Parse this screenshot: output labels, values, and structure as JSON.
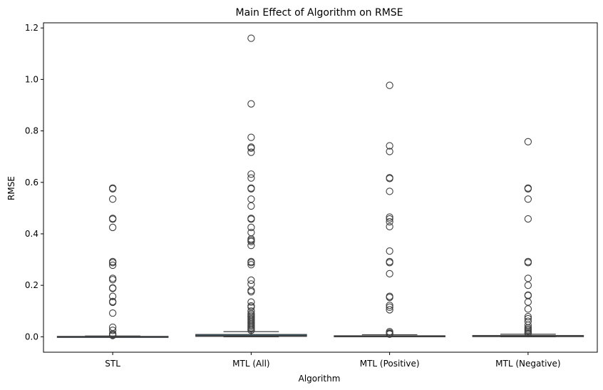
{
  "chart_data": {
    "type": "box",
    "title": "Main Effect of Algorithm on RMSE",
    "xlabel": "Algorithm",
    "ylabel": "RMSE",
    "ylim": [
      -0.06,
      1.22
    ],
    "yticks": [
      0.0,
      0.2,
      0.4,
      0.6,
      0.8,
      1.0,
      1.2
    ],
    "ytick_labels": [
      "0.0",
      "0.2",
      "0.4",
      "0.6",
      "0.8",
      "1.0",
      "1.2"
    ],
    "grid": false,
    "legend": "none",
    "colors": {
      "box_fill": "#3274a1",
      "line": "#3f3f3f",
      "outlier_edge": "#3f3f3f",
      "background": "#ffffff"
    },
    "categories": [
      "STL",
      "MTL (All)",
      "MTL (Positive)",
      "MTL (Negative)"
    ],
    "boxes": [
      {
        "category": "STL",
        "q1": 0.0,
        "median": 0.0005,
        "q3": 0.0015,
        "whisker_low": 0.0,
        "whisker_high": 0.003,
        "outliers": [
          0.578,
          0.575,
          0.535,
          0.46,
          0.457,
          0.425,
          0.292,
          0.288,
          0.278,
          0.227,
          0.222,
          0.19,
          0.188,
          0.157,
          0.137,
          0.134,
          0.092,
          0.037,
          0.025,
          0.012,
          0.008,
          0.005
        ]
      },
      {
        "category": "MTL (All)",
        "q1": 0.0015,
        "median": 0.004,
        "q3": 0.009,
        "whisker_low": 0.0,
        "whisker_high": 0.02,
        "outliers": [
          1.16,
          0.905,
          0.775,
          0.737,
          0.733,
          0.717,
          0.632,
          0.617,
          0.578,
          0.575,
          0.535,
          0.508,
          0.46,
          0.457,
          0.425,
          0.405,
          0.38,
          0.375,
          0.37,
          0.355,
          0.292,
          0.288,
          0.28,
          0.22,
          0.205,
          0.18,
          0.175,
          0.135,
          0.12,
          0.115,
          0.1,
          0.09,
          0.085,
          0.08,
          0.075,
          0.07,
          0.065,
          0.06,
          0.055,
          0.05,
          0.045,
          0.04,
          0.035,
          0.03,
          0.025
        ]
      },
      {
        "category": "MTL (Positive)",
        "q1": 0.0005,
        "median": 0.0015,
        "q3": 0.004,
        "whisker_low": 0.0,
        "whisker_high": 0.008,
        "outliers": [
          0.977,
          0.742,
          0.72,
          0.618,
          0.615,
          0.565,
          0.465,
          0.458,
          0.447,
          0.428,
          0.333,
          0.292,
          0.288,
          0.245,
          0.157,
          0.153,
          0.122,
          0.115,
          0.105,
          0.02,
          0.015,
          0.012,
          0.01
        ]
      },
      {
        "category": "MTL (Negative)",
        "q1": 0.0005,
        "median": 0.002,
        "q3": 0.005,
        "whisker_low": 0.0,
        "whisker_high": 0.01,
        "outliers": [
          0.758,
          0.578,
          0.575,
          0.535,
          0.458,
          0.292,
          0.288,
          0.227,
          0.2,
          0.162,
          0.16,
          0.135,
          0.108,
          0.078,
          0.07,
          0.06,
          0.045,
          0.035,
          0.03,
          0.025,
          0.02,
          0.015,
          0.012
        ]
      }
    ]
  }
}
